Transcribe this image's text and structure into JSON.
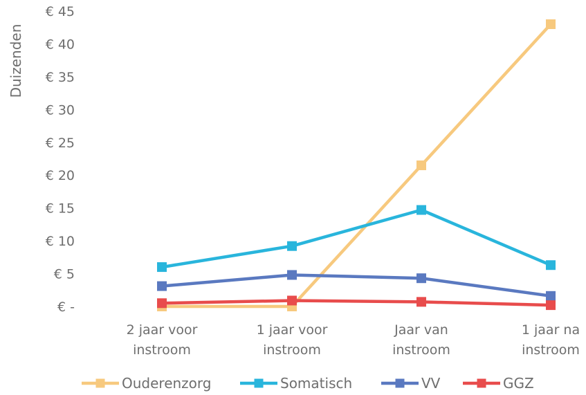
{
  "chart_data": {
    "type": "line",
    "title": "",
    "ylabel": "Duizenden",
    "xlabel": "",
    "categories": [
      [
        "2 jaar voor",
        "instroom"
      ],
      [
        "1 jaar voor",
        "instroom"
      ],
      [
        "Jaar van",
        "instroom"
      ],
      [
        "1 jaar na",
        "instroom"
      ]
    ],
    "ylim": [
      0,
      45
    ],
    "yticks": [
      0,
      5,
      10,
      15,
      20,
      25,
      30,
      35,
      40,
      45
    ],
    "ytick_labels": [
      "€ -",
      "€ 5",
      "€ 10",
      "€ 15",
      "€ 20",
      "€ 25",
      "€ 30",
      "€ 35",
      "€ 40",
      "€ 45"
    ],
    "grid": false,
    "legend_position": "bottom",
    "series": [
      {
        "name": "Ouderenzorg",
        "color": "#f7c97e",
        "values": [
          0,
          0,
          21.5,
          43
        ]
      },
      {
        "name": "Somatisch",
        "color": "#29b5dc",
        "values": [
          6,
          9.2,
          14.7,
          6.3
        ]
      },
      {
        "name": "VV",
        "color": "#5a79c0",
        "values": [
          3.1,
          4.8,
          4.3,
          1.6
        ]
      },
      {
        "name": "GGZ",
        "color": "#e84c4c",
        "values": [
          0.5,
          0.9,
          0.7,
          0.2
        ]
      }
    ]
  }
}
